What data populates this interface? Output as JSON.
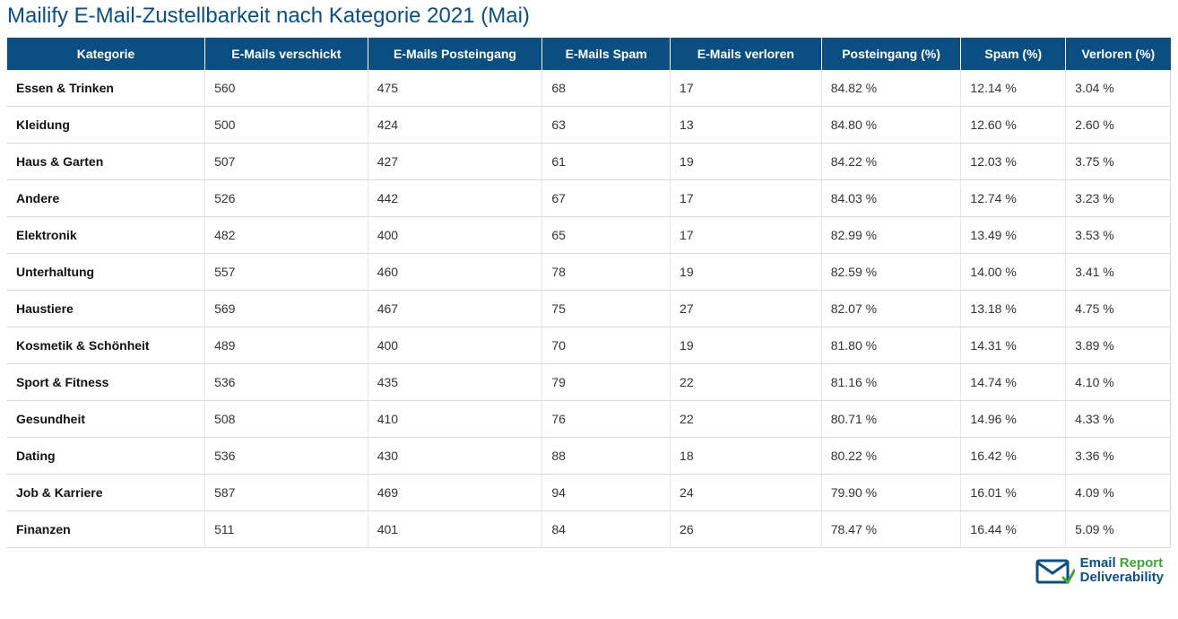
{
  "title": "Mailify E-Mail-Zustellbarkeit nach Kategorie 2021 (Mai)",
  "styling": {
    "title_color": "#0b4f82",
    "title_fontsize": 24,
    "header_bg": "#0b4f82",
    "header_text_color": "#ffffff",
    "header_fontsize": 14,
    "cell_fontsize": 14,
    "cell_text_color": "#333333",
    "row_border_color": "#d9d9d9",
    "col_border_color": "#e8e8e8",
    "background_color": "#ffffff",
    "category_fontweight": "bold"
  },
  "table": {
    "type": "table",
    "column_widths_pct": [
      17,
      14,
      15,
      11,
      13,
      12,
      9,
      9
    ],
    "column_align": [
      "left",
      "left",
      "left",
      "left",
      "left",
      "left",
      "left",
      "left"
    ],
    "columns": [
      "Kategorie",
      "E-Mails verschickt",
      "E-Mails Posteingang",
      "E-Mails Spam",
      "E-Mails verloren",
      "Posteingang (%)",
      "Spam (%)",
      "Verloren (%)"
    ],
    "rows": [
      [
        "Essen & Trinken",
        "560",
        "475",
        "68",
        "17",
        "84.82 %",
        "12.14 %",
        "3.04 %"
      ],
      [
        "Kleidung",
        "500",
        "424",
        "63",
        "13",
        "84.80 %",
        "12.60 %",
        "2.60 %"
      ],
      [
        "Haus & Garten",
        "507",
        "427",
        "61",
        "19",
        "84.22 %",
        "12.03 %",
        "3.75 %"
      ],
      [
        "Andere",
        "526",
        "442",
        "67",
        "17",
        "84.03 %",
        "12.74 %",
        "3.23 %"
      ],
      [
        "Elektronik",
        "482",
        "400",
        "65",
        "17",
        "82.99 %",
        "13.49 %",
        "3.53 %"
      ],
      [
        "Unterhaltung",
        "557",
        "460",
        "78",
        "19",
        "82.59 %",
        "14.00 %",
        "3.41 %"
      ],
      [
        "Haustiere",
        "569",
        "467",
        "75",
        "27",
        "82.07 %",
        "13.18 %",
        "4.75 %"
      ],
      [
        "Kosmetik & Schönheit",
        "489",
        "400",
        "70",
        "19",
        "81.80 %",
        "14.31 %",
        "3.89 %"
      ],
      [
        "Sport & Fitness",
        "536",
        "435",
        "79",
        "22",
        "81.16 %",
        "14.74 %",
        "4.10 %"
      ],
      [
        "Gesundheit",
        "508",
        "410",
        "76",
        "22",
        "80.71 %",
        "14.96 %",
        "4.33 %"
      ],
      [
        "Dating",
        "536",
        "430",
        "88",
        "18",
        "80.22 %",
        "16.42 %",
        "3.36 %"
      ],
      [
        "Job & Karriere",
        "587",
        "469",
        "94",
        "24",
        "79.90 %",
        "16.01 %",
        "4.09 %"
      ],
      [
        "Finanzen",
        "511",
        "401",
        "84",
        "26",
        "78.47 %",
        "16.44 %",
        "5.09 %"
      ]
    ]
  },
  "logo": {
    "line1a": "Email ",
    "line1b": "Report",
    "line2": "Deliverability",
    "envelope_color": "#0b4f82",
    "accent_color": "#3fa535"
  }
}
